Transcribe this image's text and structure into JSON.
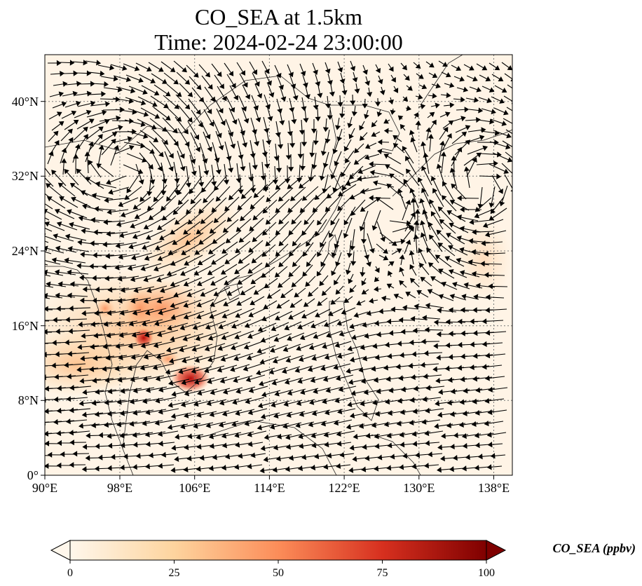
{
  "title": {
    "line1": "CO_SEA at 1.5km",
    "line2": "Time: 2024-02-24 23:00:00"
  },
  "map": {
    "lon_range": [
      90,
      140
    ],
    "lat_range": [
      0,
      45
    ],
    "gridlines": true,
    "gridline_style": "dotted",
    "x_ticks": [
      "90°E",
      "98°E",
      "106°E",
      "114°E",
      "122°E",
      "130°E",
      "138°E"
    ],
    "y_ticks": [
      "0°",
      "8°N",
      "16°N",
      "24°N",
      "32°N",
      "40°N"
    ],
    "field_name": "CO_SEA",
    "vector_field": "wind arrows"
  },
  "colorbar": {
    "title": "CO_SEA (ppbv)",
    "tick_labels": [
      "0",
      "25",
      "50",
      "75",
      "100"
    ],
    "range": [
      0,
      100
    ],
    "colormap": "OrRd",
    "colors": [
      "#fff7ec",
      "#fdd49e",
      "#fc8d59",
      "#d7301f",
      "#7f0000"
    ],
    "extend": "both"
  }
}
